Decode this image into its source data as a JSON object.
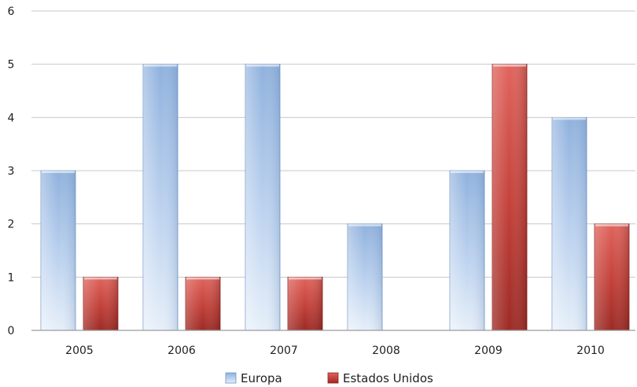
{
  "chart_data": {
    "type": "bar",
    "title": "",
    "xlabel": "",
    "ylabel": "",
    "categories": [
      "2005",
      "2006",
      "2007",
      "2008",
      "2009",
      "2010"
    ],
    "series": [
      {
        "name": "Europa",
        "values": [
          3,
          5,
          5,
          2,
          3,
          4
        ],
        "color": "#a9c4e6"
      },
      {
        "name": "Estados Unidos",
        "values": [
          1,
          1,
          1,
          0,
          5,
          2
        ],
        "color": "#c4403b"
      }
    ],
    "ylim": [
      0,
      6
    ],
    "yticks": [
      "0",
      "1",
      "2",
      "3",
      "4",
      "5",
      "6"
    ],
    "grid": true,
    "legend_position": "bottom"
  }
}
